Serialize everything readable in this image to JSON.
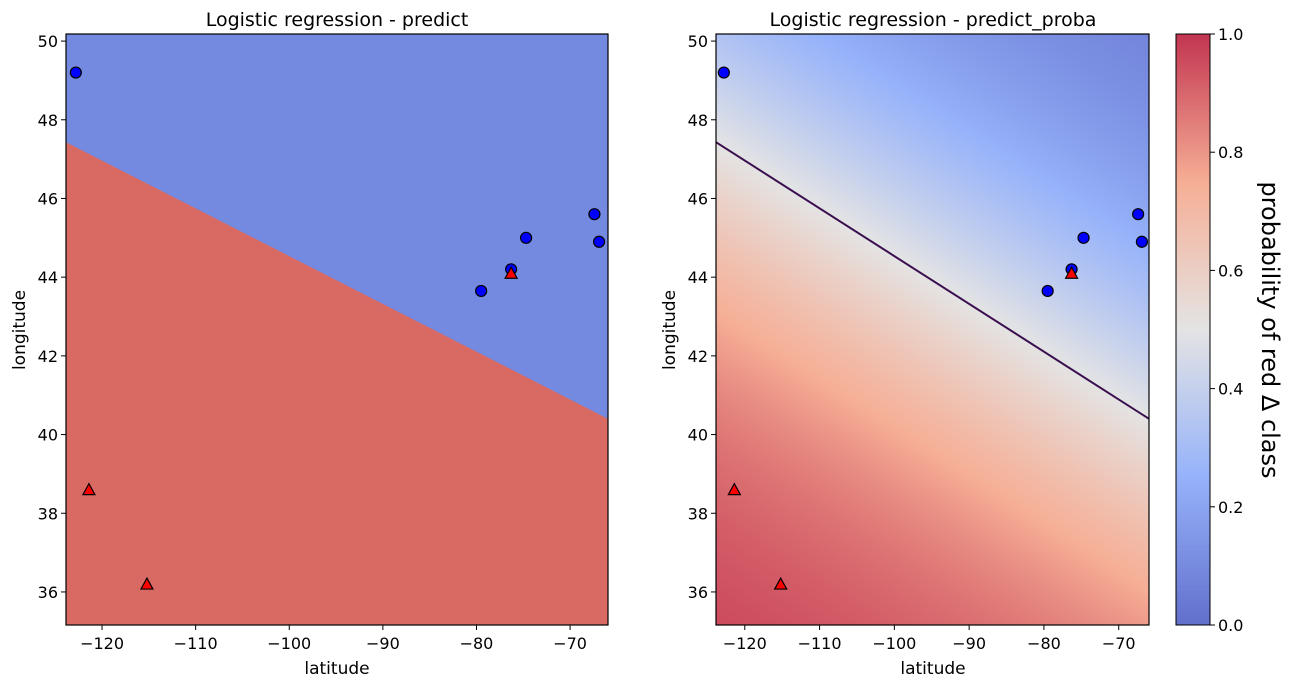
{
  "chart_data": [
    {
      "type": "scatter",
      "title": "Logistic regression - predict",
      "xlabel": "latitude",
      "ylabel": "longitude",
      "xlim": [
        -123.85,
        -65.95
      ],
      "ylim": [
        35.16,
        50.18
      ],
      "xticks": [
        -120,
        -110,
        -100,
        -90,
        -80,
        -70
      ],
      "yticks": [
        36,
        38,
        40,
        42,
        44,
        46,
        48,
        50
      ],
      "background": "predicted class regions",
      "decision_boundary": [
        [
          -123.85,
          47.43
        ],
        [
          -65.95,
          40.4
        ]
      ],
      "region_colors": {
        "above": "#7489e0",
        "below": "#d86a63"
      },
      "series": [
        {
          "name": "blue circle class",
          "marker": "circle",
          "color": "#0000ff",
          "points": [
            [
              -122.8,
              49.2
            ],
            [
              -79.5,
              43.65
            ],
            [
              -76.3,
              44.2
            ],
            [
              -74.7,
              45.0
            ],
            [
              -67.4,
              45.6
            ],
            [
              -66.9,
              44.9
            ]
          ]
        },
        {
          "name": "red triangle class",
          "marker": "triangle",
          "color": "#ff0000",
          "points": [
            [
              -121.4,
              38.6
            ],
            [
              -115.2,
              36.2
            ],
            [
              -76.3,
              44.1
            ]
          ]
        }
      ]
    },
    {
      "type": "heatmap",
      "title": "Logistic regression - predict_proba",
      "xlabel": "latitude",
      "ylabel": "longitude",
      "xlim": [
        -123.85,
        -65.95
      ],
      "ylim": [
        35.16,
        50.18
      ],
      "xticks": [
        -120,
        -110,
        -100,
        -90,
        -80,
        -70
      ],
      "yticks": [
        36,
        38,
        40,
        42,
        44,
        46,
        48,
        50
      ],
      "colormap": "coolwarm",
      "probability_slope": 0.25,
      "contour_level": 0.5,
      "contour_color": "#3b0f4f",
      "decision_boundary": [
        [
          -123.85,
          47.43
        ],
        [
          -65.95,
          40.4
        ]
      ],
      "colorbar": {
        "label": "probability of red Δ class",
        "range": [
          0,
          1
        ],
        "ticks": [
          "0.0",
          "0.2",
          "0.4",
          "0.6",
          "0.8",
          "1.0"
        ]
      },
      "series": [
        {
          "name": "blue circle class",
          "marker": "circle",
          "color": "#0000ff",
          "points": [
            [
              -122.8,
              49.2
            ],
            [
              -79.5,
              43.65
            ],
            [
              -76.3,
              44.2
            ],
            [
              -74.7,
              45.0
            ],
            [
              -67.4,
              45.6
            ],
            [
              -66.9,
              44.9
            ]
          ]
        },
        {
          "name": "red triangle class",
          "marker": "triangle",
          "color": "#ff0000",
          "points": [
            [
              -121.4,
              38.6
            ],
            [
              -115.2,
              36.2
            ],
            [
              -76.3,
              44.1
            ]
          ]
        }
      ]
    }
  ]
}
